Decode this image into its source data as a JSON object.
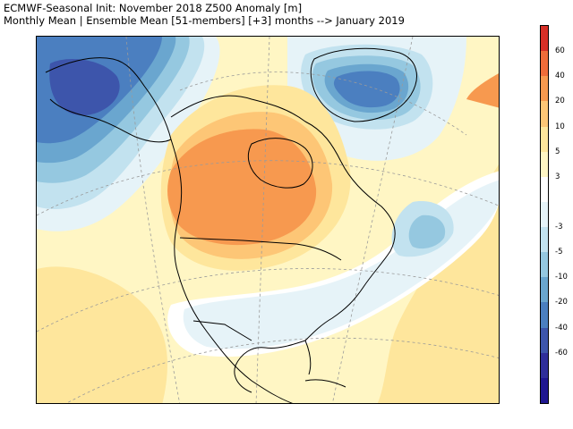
{
  "header": {
    "line1": "ECMWF-Seasonal Init: November 2018 Z500 Anomaly [m]",
    "line2": "Monthly Mean | Ensemble Mean [51-members] [+3] months --> January 2019"
  },
  "colorbar": {
    "segments": [
      {
        "color": "#d62f27"
      },
      {
        "color": "#ef6c3a"
      },
      {
        "color": "#f7994f"
      },
      {
        "color": "#fdc676"
      },
      {
        "color": "#fee69c"
      },
      {
        "color": "#fff6c4"
      },
      {
        "color": "#ffffff"
      },
      {
        "color": "#e6f3f8"
      },
      {
        "color": "#c2e2ef"
      },
      {
        "color": "#95c8e0"
      },
      {
        "color": "#6aa6cf"
      },
      {
        "color": "#4b7fc0"
      },
      {
        "color": "#3d55ab"
      },
      {
        "color": "#2f2e9a"
      },
      {
        "color": "#1f1690"
      }
    ],
    "labels": [
      "60",
      "40",
      "20",
      "10",
      "5",
      "3",
      "-3",
      "-5",
      "-10",
      "-20",
      "-40",
      "-60"
    ],
    "levels": [
      60,
      40,
      20,
      10,
      5,
      3,
      -3,
      -5,
      -10,
      -20,
      -40,
      -60
    ]
  },
  "map_colors": {
    "strong_negative": "#3d55ab",
    "negative": "#4b7fc0",
    "moderate_negative": "#6aa6cf",
    "weak_negative": "#95c8e0",
    "slight_negative": "#c2e2ef",
    "near_zero_negative": "#e6f3f8",
    "neutral": "#ffffff",
    "slight_positive": "#fff6c4",
    "weak_positive": "#fee69c",
    "moderate_positive": "#fdc676",
    "positive": "#f7994f",
    "coast": "#000000",
    "grid": "#9a9a9a"
  }
}
